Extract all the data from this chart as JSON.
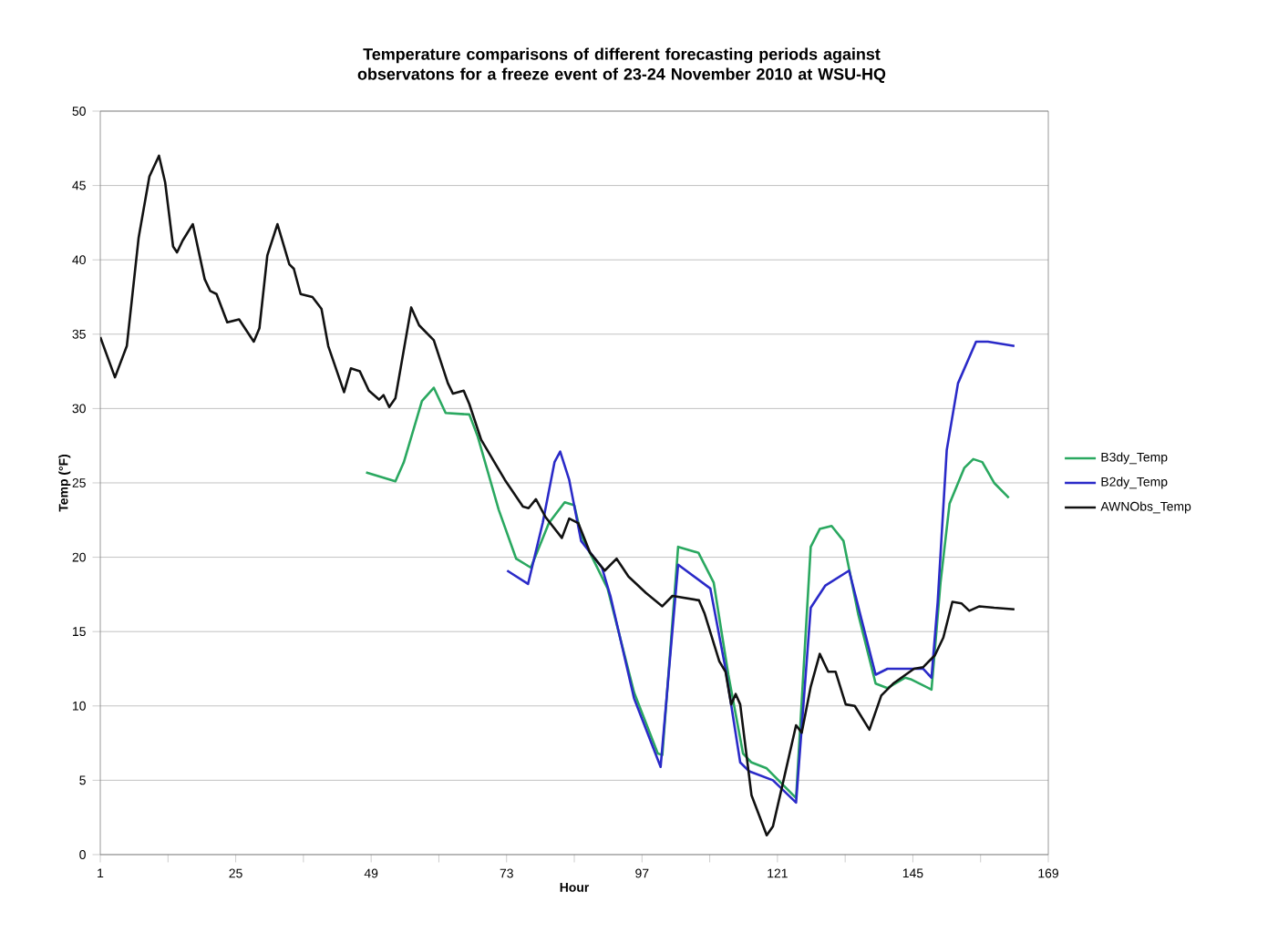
{
  "chart_data": {
    "type": "line",
    "title": "Temperature comparisons of different forecasting periods against observatons for a freeze event of 23-24 November 2010 at WSU-HQ",
    "xlabel": "Hour",
    "ylabel": "Temp (°F)",
    "xlim": [
      1,
      169
    ],
    "xticks": [
      1,
      {
        "value": 13,
        "label": null
      },
      25,
      {
        "value": 37,
        "label": null
      },
      49,
      {
        "value": 61,
        "label": null
      },
      73,
      {
        "value": 85,
        "label": null
      },
      97,
      {
        "value": 109,
        "label": null
      },
      121,
      {
        "value": 133,
        "label": null
      },
      145,
      {
        "value": 157,
        "label": null
      },
      169
    ],
    "ylim": [
      0,
      50
    ],
    "yticks": [
      0,
      5,
      10,
      15,
      20,
      25,
      30,
      35,
      40,
      45,
      50
    ],
    "grid": "y",
    "legend": "right",
    "marker": "none",
    "series": [
      {
        "name": "B3dy_Temp",
        "color": "#2aa860",
        "x": [
          48.1,
          53.3,
          54.8,
          58.0,
          60.1,
          62.2,
          66.4,
          67.9,
          71.6,
          74.7,
          77.3,
          80.5,
          83.3,
          85.0,
          86.2,
          90.9,
          95.6,
          99.8,
          100.6,
          103.4,
          107.0,
          109.7,
          112.3,
          114.9,
          116.4,
          119.1,
          121.7,
          124.3,
          126.9,
          128.5,
          130.6,
          132.7,
          135.3,
          138.4,
          140.5,
          143.6,
          144.6,
          148.3,
          149.9,
          151.5,
          154.1,
          155.7,
          157.3,
          159.4,
          162.0
        ],
        "values": [
          25.7,
          25.1,
          26.4,
          30.5,
          31.4,
          29.7,
          29.6,
          28.1,
          23.2,
          19.9,
          19.3,
          22.3,
          23.7,
          23.5,
          21.5,
          17.9,
          10.9,
          6.8,
          6.7,
          20.7,
          20.3,
          18.3,
          12.1,
          6.8,
          6.2,
          5.8,
          4.8,
          3.8,
          20.7,
          21.9,
          22.1,
          21.1,
          16.2,
          11.5,
          11.2,
          11.9,
          11.8,
          11.1,
          18.3,
          23.6,
          26.0,
          26.6,
          26.4,
          25.0,
          24.0
        ]
      },
      {
        "name": "B2dy_Temp",
        "color": "#2a2ac8",
        "x": [
          73.1,
          76.8,
          79.4,
          81.5,
          82.5,
          84.1,
          86.2,
          89.9,
          91.4,
          95.6,
          100.3,
          103.4,
          109.1,
          111.8,
          114.4,
          116.0,
          120.2,
          124.3,
          126.9,
          129.5,
          133.7,
          138.4,
          140.5,
          146.8,
          148.3,
          149.4,
          151.0,
          153.0,
          156.2,
          158.3,
          163.0
        ],
        "values": [
          19.1,
          18.2,
          22.3,
          26.4,
          27.1,
          25.2,
          21.1,
          19.3,
          17.4,
          10.5,
          5.9,
          19.5,
          17.9,
          12.5,
          6.2,
          5.6,
          5.0,
          3.5,
          16.6,
          18.1,
          19.1,
          12.1,
          12.5,
          12.5,
          11.9,
          17.0,
          27.2,
          31.7,
          34.5,
          34.5,
          34.2
        ]
      },
      {
        "name": "AWNObs_Temp",
        "color": "#111111",
        "x": [
          1,
          3.6,
          5.7,
          7.8,
          9.7,
          11.4,
          12.5,
          13.9,
          14.6,
          15.6,
          17.4,
          19.5,
          20.5,
          21.6,
          23.5,
          25.6,
          28.2,
          29.2,
          30.6,
          32.4,
          34.5,
          35.3,
          36.5,
          38.6,
          40.2,
          41.4,
          44.2,
          45.4,
          47.0,
          48.6,
          50.4,
          51.2,
          52.2,
          53.3,
          56.1,
          57.5,
          60.1,
          62.6,
          63.5,
          65.4,
          66.4,
          68.5,
          72.7,
          75.9,
          76.9,
          78.2,
          79.9,
          82.8,
          84.1,
          85.7,
          87.8,
          90.4,
          92.5,
          94.6,
          97.7,
          100.6,
          102.4,
          107.1,
          108.1,
          110.7,
          111.8,
          112.8,
          113.6,
          114.4,
          116.4,
          119.1,
          120.2,
          122.2,
          124.3,
          125.3,
          126.9,
          128.5,
          130.0,
          131.3,
          133.1,
          134.7,
          137.3,
          139.4,
          141.5,
          145.2,
          146.8,
          148.9,
          150.4,
          152.0,
          153.6,
          155.0,
          156.8,
          159.4,
          163.0
        ],
        "values": [
          34.8,
          32.1,
          34.2,
          41.5,
          45.6,
          47.0,
          45.2,
          40.9,
          40.5,
          41.3,
          42.4,
          38.7,
          37.9,
          37.7,
          35.8,
          36.0,
          34.5,
          35.4,
          40.3,
          42.4,
          39.7,
          39.4,
          37.7,
          37.5,
          36.7,
          34.2,
          31.1,
          32.7,
          32.5,
          31.2,
          30.6,
          30.9,
          30.1,
          30.7,
          36.8,
          35.6,
          34.6,
          31.7,
          31.0,
          31.2,
          30.3,
          27.9,
          25.2,
          23.4,
          23.3,
          23.9,
          22.7,
          21.3,
          22.6,
          22.3,
          20.3,
          19.1,
          19.9,
          18.7,
          17.6,
          16.7,
          17.4,
          17.1,
          16.2,
          13.0,
          12.3,
          10.1,
          10.8,
          10.1,
          4.0,
          1.3,
          1.9,
          5.2,
          8.7,
          8.2,
          11.3,
          13.5,
          12.3,
          12.3,
          10.1,
          10.0,
          8.4,
          10.7,
          11.5,
          12.5,
          12.6,
          13.4,
          14.6,
          17.0,
          16.9,
          16.4,
          16.7,
          16.6,
          16.5
        ]
      }
    ]
  }
}
